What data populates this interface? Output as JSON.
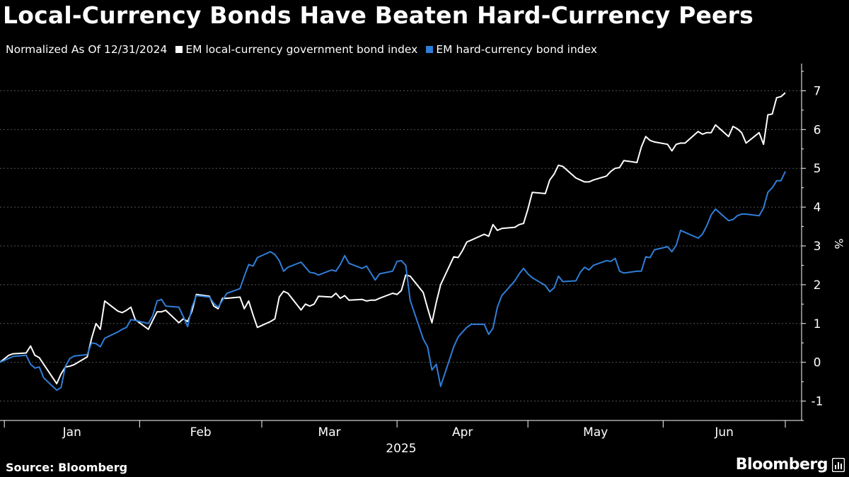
{
  "title": "Local-Currency Bonds Have Beaten Hard-Currency Peers",
  "subtitle": "Normalized As Of 12/31/2024",
  "source": "Source: Bloomberg",
  "brand": "Bloomberg",
  "colors": {
    "background": "#000000",
    "series_local": "#ffffff",
    "series_hard": "#2f7ed8",
    "grid": "#555555",
    "text": "#ffffff"
  },
  "chart_data": {
    "type": "line",
    "title": "Local-Currency Bonds Have Beaten Hard-Currency Peers",
    "subtitle": "Normalized As Of 12/31/2024",
    "xlabel": "2025",
    "ylabel": "%",
    "ylim": [
      -1.5,
      7.7
    ],
    "xlim": [
      "2024-12-31",
      "2025-06-29"
    ],
    "y_ticks": [
      -1,
      0,
      1,
      2,
      3,
      4,
      5,
      6,
      7
    ],
    "y_tick_labels": [
      "-1",
      "0",
      "1",
      "2",
      "3",
      "4",
      "5",
      "6",
      "7"
    ],
    "x_tick_labels": [
      "Jan",
      "Feb",
      "Mar",
      "Apr",
      "May",
      "Jun"
    ],
    "grid": "horizontal dotted",
    "legend": "top-left",
    "series": [
      {
        "name": "EM local-currency government bond index",
        "color": "#ffffff",
        "points": [
          [
            "2024-12-31",
            0.0
          ],
          [
            "2025-01-02",
            0.18
          ],
          [
            "2025-01-03",
            0.22
          ],
          [
            "2025-01-06",
            0.24
          ],
          [
            "2025-01-07",
            0.42
          ],
          [
            "2025-01-08",
            0.18
          ],
          [
            "2025-01-09",
            0.12
          ],
          [
            "2025-01-10",
            -0.05
          ],
          [
            "2025-01-13",
            -0.55
          ],
          [
            "2025-01-14",
            -0.3
          ],
          [
            "2025-01-15",
            -0.12
          ],
          [
            "2025-01-16",
            -0.1
          ],
          [
            "2025-01-17",
            -0.06
          ],
          [
            "2025-01-20",
            0.14
          ],
          [
            "2025-01-21",
            0.62
          ],
          [
            "2025-01-22",
            1.0
          ],
          [
            "2025-01-23",
            0.85
          ],
          [
            "2025-01-24",
            1.58
          ],
          [
            "2025-01-27",
            1.32
          ],
          [
            "2025-01-28",
            1.28
          ],
          [
            "2025-01-29",
            1.34
          ],
          [
            "2025-01-30",
            1.42
          ],
          [
            "2025-01-31",
            1.1
          ],
          [
            "2025-02-03",
            0.85
          ],
          [
            "2025-02-04",
            1.08
          ],
          [
            "2025-02-05",
            1.3
          ],
          [
            "2025-02-06",
            1.3
          ],
          [
            "2025-02-07",
            1.34
          ],
          [
            "2025-02-10",
            1.02
          ],
          [
            "2025-02-11",
            1.12
          ],
          [
            "2025-02-12",
            1.05
          ],
          [
            "2025-02-13",
            1.32
          ],
          [
            "2025-02-14",
            1.75
          ],
          [
            "2025-02-17",
            1.7
          ],
          [
            "2025-02-18",
            1.45
          ],
          [
            "2025-02-19",
            1.38
          ],
          [
            "2025-02-20",
            1.65
          ],
          [
            "2025-02-21",
            1.65
          ],
          [
            "2025-02-24",
            1.68
          ],
          [
            "2025-02-25",
            1.38
          ],
          [
            "2025-02-26",
            1.58
          ],
          [
            "2025-02-27",
            1.22
          ],
          [
            "2025-02-28",
            0.9
          ],
          [
            "2025-03-03",
            1.05
          ],
          [
            "2025-03-04",
            1.12
          ],
          [
            "2025-03-05",
            1.68
          ],
          [
            "2025-03-06",
            1.83
          ],
          [
            "2025-03-07",
            1.78
          ],
          [
            "2025-03-10",
            1.35
          ],
          [
            "2025-03-11",
            1.5
          ],
          [
            "2025-03-12",
            1.45
          ],
          [
            "2025-03-13",
            1.5
          ],
          [
            "2025-03-14",
            1.7
          ],
          [
            "2025-03-17",
            1.68
          ],
          [
            "2025-03-18",
            1.78
          ],
          [
            "2025-03-19",
            1.65
          ],
          [
            "2025-03-20",
            1.72
          ],
          [
            "2025-03-21",
            1.6
          ],
          [
            "2025-03-24",
            1.62
          ],
          [
            "2025-03-25",
            1.58
          ],
          [
            "2025-03-26",
            1.6
          ],
          [
            "2025-03-27",
            1.6
          ],
          [
            "2025-03-28",
            1.65
          ],
          [
            "2025-03-31",
            1.78
          ],
          [
            "2025-04-01",
            1.75
          ],
          [
            "2025-04-02",
            1.85
          ],
          [
            "2025-04-03",
            2.25
          ],
          [
            "2025-04-04",
            2.22
          ],
          [
            "2025-04-07",
            1.8
          ],
          [
            "2025-04-08",
            1.4
          ],
          [
            "2025-04-09",
            1.02
          ],
          [
            "2025-04-10",
            1.55
          ],
          [
            "2025-04-11",
            2.0
          ],
          [
            "2025-04-14",
            2.72
          ],
          [
            "2025-04-15",
            2.7
          ],
          [
            "2025-04-16",
            2.88
          ],
          [
            "2025-04-17",
            3.1
          ],
          [
            "2025-04-18",
            3.15
          ],
          [
            "2025-04-21",
            3.3
          ],
          [
            "2025-04-22",
            3.25
          ],
          [
            "2025-04-23",
            3.55
          ],
          [
            "2025-04-24",
            3.4
          ],
          [
            "2025-04-25",
            3.45
          ],
          [
            "2025-04-28",
            3.48
          ],
          [
            "2025-04-29",
            3.55
          ],
          [
            "2025-04-30",
            3.58
          ],
          [
            "2025-05-01",
            3.95
          ],
          [
            "2025-05-02",
            4.38
          ],
          [
            "2025-05-05",
            4.35
          ],
          [
            "2025-05-06",
            4.7
          ],
          [
            "2025-05-07",
            4.85
          ],
          [
            "2025-05-08",
            5.08
          ],
          [
            "2025-05-09",
            5.05
          ],
          [
            "2025-05-12",
            4.75
          ],
          [
            "2025-05-13",
            4.7
          ],
          [
            "2025-05-14",
            4.65
          ],
          [
            "2025-05-15",
            4.65
          ],
          [
            "2025-05-16",
            4.7
          ],
          [
            "2025-05-19",
            4.8
          ],
          [
            "2025-05-20",
            4.92
          ],
          [
            "2025-05-21",
            5.0
          ],
          [
            "2025-05-22",
            5.02
          ],
          [
            "2025-05-23",
            5.2
          ],
          [
            "2025-05-26",
            5.15
          ],
          [
            "2025-05-27",
            5.55
          ],
          [
            "2025-05-28",
            5.82
          ],
          [
            "2025-05-29",
            5.72
          ],
          [
            "2025-05-30",
            5.68
          ],
          [
            "2025-06-02",
            5.62
          ],
          [
            "2025-06-03",
            5.45
          ],
          [
            "2025-06-04",
            5.62
          ],
          [
            "2025-06-05",
            5.65
          ],
          [
            "2025-06-06",
            5.65
          ],
          [
            "2025-06-09",
            5.95
          ],
          [
            "2025-06-10",
            5.88
          ],
          [
            "2025-06-11",
            5.92
          ],
          [
            "2025-06-12",
            5.92
          ],
          [
            "2025-06-13",
            6.12
          ],
          [
            "2025-06-16",
            5.82
          ],
          [
            "2025-06-17",
            6.08
          ],
          [
            "2025-06-18",
            6.02
          ],
          [
            "2025-06-19",
            5.92
          ],
          [
            "2025-06-20",
            5.65
          ],
          [
            "2025-06-23",
            5.92
          ],
          [
            "2025-06-24",
            5.62
          ],
          [
            "2025-06-25",
            6.38
          ],
          [
            "2025-06-26",
            6.4
          ],
          [
            "2025-06-27",
            6.82
          ],
          [
            "2025-06-28",
            6.85
          ],
          [
            "2025-06-29",
            6.95
          ]
        ]
      },
      {
        "name": "EM hard-currency bond index",
        "color": "#2f7ed8",
        "points": [
          [
            "2024-12-31",
            0.0
          ],
          [
            "2025-01-02",
            0.1
          ],
          [
            "2025-01-03",
            0.15
          ],
          [
            "2025-01-06",
            0.18
          ],
          [
            "2025-01-07",
            -0.05
          ],
          [
            "2025-01-08",
            -0.15
          ],
          [
            "2025-01-09",
            -0.12
          ],
          [
            "2025-01-10",
            -0.4
          ],
          [
            "2025-01-13",
            -0.72
          ],
          [
            "2025-01-14",
            -0.65
          ],
          [
            "2025-01-15",
            -0.1
          ],
          [
            "2025-01-16",
            0.1
          ],
          [
            "2025-01-17",
            0.16
          ],
          [
            "2025-01-20",
            0.2
          ],
          [
            "2025-01-21",
            0.5
          ],
          [
            "2025-01-22",
            0.48
          ],
          [
            "2025-01-23",
            0.4
          ],
          [
            "2025-01-24",
            0.62
          ],
          [
            "2025-01-27",
            0.78
          ],
          [
            "2025-01-28",
            0.85
          ],
          [
            "2025-01-29",
            0.9
          ],
          [
            "2025-01-30",
            1.1
          ],
          [
            "2025-01-31",
            1.08
          ],
          [
            "2025-02-03",
            1.0
          ],
          [
            "2025-02-04",
            1.2
          ],
          [
            "2025-02-05",
            1.58
          ],
          [
            "2025-02-06",
            1.62
          ],
          [
            "2025-02-07",
            1.45
          ],
          [
            "2025-02-10",
            1.42
          ],
          [
            "2025-02-11",
            1.18
          ],
          [
            "2025-02-12",
            0.92
          ],
          [
            "2025-02-13",
            1.42
          ],
          [
            "2025-02-14",
            1.72
          ],
          [
            "2025-02-17",
            1.68
          ],
          [
            "2025-02-18",
            1.52
          ],
          [
            "2025-02-19",
            1.42
          ],
          [
            "2025-02-20",
            1.6
          ],
          [
            "2025-02-21",
            1.78
          ],
          [
            "2025-02-24",
            1.9
          ],
          [
            "2025-02-25",
            2.22
          ],
          [
            "2025-02-26",
            2.52
          ],
          [
            "2025-02-27",
            2.48
          ],
          [
            "2025-02-28",
            2.7
          ],
          [
            "2025-03-03",
            2.85
          ],
          [
            "2025-03-04",
            2.78
          ],
          [
            "2025-03-05",
            2.62
          ],
          [
            "2025-03-06",
            2.35
          ],
          [
            "2025-03-07",
            2.45
          ],
          [
            "2025-03-10",
            2.58
          ],
          [
            "2025-03-11",
            2.45
          ],
          [
            "2025-03-12",
            2.32
          ],
          [
            "2025-03-13",
            2.3
          ],
          [
            "2025-03-14",
            2.25
          ],
          [
            "2025-03-17",
            2.38
          ],
          [
            "2025-03-18",
            2.35
          ],
          [
            "2025-03-19",
            2.52
          ],
          [
            "2025-03-20",
            2.75
          ],
          [
            "2025-03-21",
            2.55
          ],
          [
            "2025-03-24",
            2.42
          ],
          [
            "2025-03-25",
            2.48
          ],
          [
            "2025-03-26",
            2.3
          ],
          [
            "2025-03-27",
            2.12
          ],
          [
            "2025-03-28",
            2.28
          ],
          [
            "2025-03-31",
            2.35
          ],
          [
            "2025-04-01",
            2.6
          ],
          [
            "2025-04-02",
            2.62
          ],
          [
            "2025-04-03",
            2.5
          ],
          [
            "2025-04-04",
            1.6
          ],
          [
            "2025-04-07",
            0.6
          ],
          [
            "2025-04-08",
            0.4
          ],
          [
            "2025-04-09",
            -0.2
          ],
          [
            "2025-04-10",
            -0.05
          ],
          [
            "2025-04-11",
            -0.62
          ],
          [
            "2025-04-14",
            0.4
          ],
          [
            "2025-04-15",
            0.65
          ],
          [
            "2025-04-16",
            0.78
          ],
          [
            "2025-04-17",
            0.9
          ],
          [
            "2025-04-18",
            0.98
          ],
          [
            "2025-04-21",
            0.98
          ],
          [
            "2025-04-22",
            0.72
          ],
          [
            "2025-04-23",
            0.88
          ],
          [
            "2025-04-24",
            1.42
          ],
          [
            "2025-04-25",
            1.72
          ],
          [
            "2025-04-28",
            2.1
          ],
          [
            "2025-04-29",
            2.28
          ],
          [
            "2025-04-30",
            2.42
          ],
          [
            "2025-05-01",
            2.28
          ],
          [
            "2025-05-02",
            2.18
          ],
          [
            "2025-05-05",
            1.98
          ],
          [
            "2025-05-06",
            1.82
          ],
          [
            "2025-05-07",
            1.92
          ],
          [
            "2025-05-08",
            2.22
          ],
          [
            "2025-05-09",
            2.08
          ],
          [
            "2025-05-12",
            2.1
          ],
          [
            "2025-05-13",
            2.32
          ],
          [
            "2025-05-14",
            2.45
          ],
          [
            "2025-05-15",
            2.38
          ],
          [
            "2025-05-16",
            2.5
          ],
          [
            "2025-05-19",
            2.62
          ],
          [
            "2025-05-20",
            2.6
          ],
          [
            "2025-05-21",
            2.68
          ],
          [
            "2025-05-22",
            2.35
          ],
          [
            "2025-05-23",
            2.3
          ],
          [
            "2025-05-26",
            2.35
          ],
          [
            "2025-05-27",
            2.35
          ],
          [
            "2025-05-28",
            2.72
          ],
          [
            "2025-05-29",
            2.7
          ],
          [
            "2025-05-30",
            2.9
          ],
          [
            "2025-06-02",
            2.98
          ],
          [
            "2025-06-03",
            2.85
          ],
          [
            "2025-06-04",
            3.02
          ],
          [
            "2025-06-05",
            3.4
          ],
          [
            "2025-06-06",
            3.35
          ],
          [
            "2025-06-09",
            3.2
          ],
          [
            "2025-06-10",
            3.3
          ],
          [
            "2025-06-11",
            3.52
          ],
          [
            "2025-06-12",
            3.8
          ],
          [
            "2025-06-13",
            3.95
          ],
          [
            "2025-06-16",
            3.65
          ],
          [
            "2025-06-17",
            3.68
          ],
          [
            "2025-06-18",
            3.78
          ],
          [
            "2025-06-19",
            3.82
          ],
          [
            "2025-06-20",
            3.82
          ],
          [
            "2025-06-23",
            3.78
          ],
          [
            "2025-06-24",
            3.98
          ],
          [
            "2025-06-25",
            4.38
          ],
          [
            "2025-06-26",
            4.5
          ],
          [
            "2025-06-27",
            4.68
          ],
          [
            "2025-06-28",
            4.68
          ],
          [
            "2025-06-29",
            4.92
          ]
        ]
      }
    ]
  }
}
